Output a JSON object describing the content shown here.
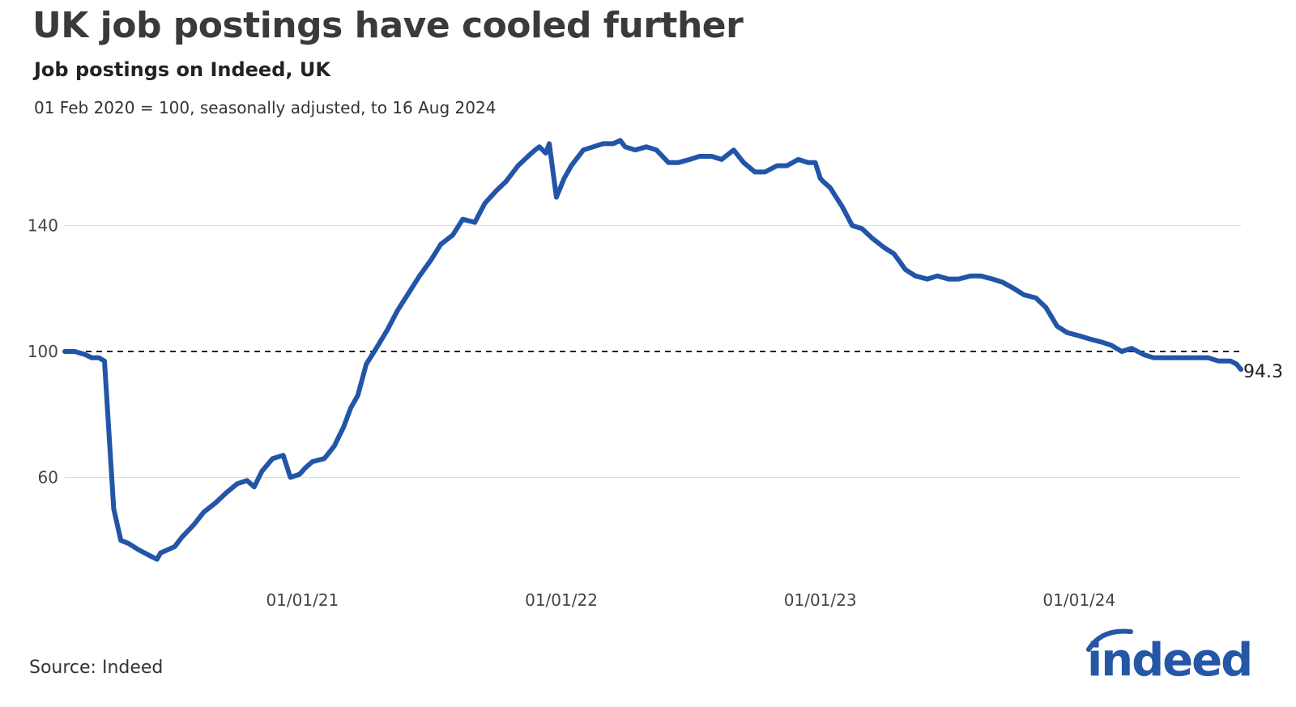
{
  "header": {
    "title": "UK job postings have cooled further",
    "subtitle": "Job postings on Indeed, UK",
    "note": "01 Feb 2020 = 100, seasonally adjusted, to 16 Aug 2024"
  },
  "footer": {
    "source": "Source: Indeed",
    "logo_text": "indeed"
  },
  "colors": {
    "line": "#2255a8",
    "logo": "#2557a7",
    "grid": "#dddddd",
    "reference": "#222222"
  },
  "chart_data": {
    "type": "line",
    "title": "UK job postings have cooled further",
    "subtitle": "Job postings on Indeed, UK",
    "x_axis": {
      "type": "date",
      "range": [
        "2020-02-01",
        "2024-08-16"
      ],
      "tick_labels": [
        "01/01/21",
        "01/01/22",
        "01/01/23",
        "01/01/24"
      ]
    },
    "y_axis": {
      "ticks": [
        60,
        100,
        140
      ],
      "range": [
        26,
        175
      ]
    },
    "grid": {
      "horizontal": true,
      "vertical": false
    },
    "reference_line": {
      "y": 100,
      "style": "dashed"
    },
    "end_label": "94.3",
    "series": [
      {
        "x": [
          "2020-02-01",
          "2020-02-15",
          "2020-03-01",
          "2020-03-10",
          "2020-03-20",
          "2020-03-28",
          "2020-04-03",
          "2020-04-10",
          "2020-04-20",
          "2020-05-01",
          "2020-05-15",
          "2020-06-01",
          "2020-06-10",
          "2020-06-15",
          "2020-06-25",
          "2020-07-05",
          "2020-07-15",
          "2020-08-01",
          "2020-08-15",
          "2020-09-01",
          "2020-09-15",
          "2020-10-01",
          "2020-10-15",
          "2020-10-25",
          "2020-11-05",
          "2020-11-20",
          "2020-12-05",
          "2020-12-15",
          "2020-12-28",
          "2021-01-05",
          "2021-01-15",
          "2021-02-01",
          "2021-02-15",
          "2021-02-28",
          "2021-03-10",
          "2021-03-20",
          "2021-04-01",
          "2021-04-15",
          "2021-05-01",
          "2021-05-15",
          "2021-06-01",
          "2021-06-15",
          "2021-07-01",
          "2021-07-15",
          "2021-08-01",
          "2021-08-15",
          "2021-09-01",
          "2021-09-15",
          "2021-10-01",
          "2021-10-15",
          "2021-11-01",
          "2021-11-15",
          "2021-11-25",
          "2021-12-01",
          "2021-12-10",
          "2021-12-15",
          "2021-12-25",
          "2022-01-05",
          "2022-01-15",
          "2022-02-01",
          "2022-02-15",
          "2022-03-01",
          "2022-03-15",
          "2022-03-25",
          "2022-04-01",
          "2022-04-15",
          "2022-05-01",
          "2022-05-15",
          "2022-06-01",
          "2022-06-15",
          "2022-07-01",
          "2022-07-15",
          "2022-08-01",
          "2022-08-15",
          "2022-09-01",
          "2022-09-15",
          "2022-10-01",
          "2022-10-15",
          "2022-11-01",
          "2022-11-15",
          "2022-12-01",
          "2022-12-15",
          "2022-12-25",
          "2023-01-01",
          "2023-01-05",
          "2023-01-15",
          "2023-02-01",
          "2023-02-15",
          "2023-03-01",
          "2023-03-15",
          "2023-04-01",
          "2023-04-15",
          "2023-05-01",
          "2023-05-15",
          "2023-06-01",
          "2023-06-15",
          "2023-07-01",
          "2023-07-15",
          "2023-08-01",
          "2023-08-15",
          "2023-09-01",
          "2023-09-15",
          "2023-10-01",
          "2023-10-15",
          "2023-11-01",
          "2023-11-15",
          "2023-12-01",
          "2023-12-15",
          "2024-01-01",
          "2024-01-15",
          "2024-02-01",
          "2024-02-15",
          "2024-03-01",
          "2024-03-15",
          "2024-04-01",
          "2024-04-15",
          "2024-05-01",
          "2024-05-15",
          "2024-06-01",
          "2024-06-15",
          "2024-07-01",
          "2024-07-15",
          "2024-08-01",
          "2024-08-10",
          "2024-08-16"
        ],
        "y": [
          100,
          100,
          99,
          98,
          98,
          97,
          75,
          50,
          40,
          39,
          37,
          35,
          34,
          36,
          37,
          38,
          41,
          45,
          49,
          52,
          55,
          58,
          59,
          57,
          62,
          66,
          67,
          60,
          61,
          63,
          65,
          66,
          70,
          76,
          82,
          86,
          96,
          101,
          107,
          113,
          119,
          124,
          129,
          134,
          137,
          142,
          141,
          147,
          151,
          154,
          159,
          162,
          164,
          165,
          163,
          166,
          149,
          155,
          159,
          164,
          165,
          166,
          166,
          167,
          165,
          164,
          165,
          164,
          160,
          160,
          161,
          162,
          162,
          161,
          164,
          160,
          157,
          157,
          159,
          159,
          161,
          160,
          160,
          155,
          154,
          152,
          146,
          140,
          139,
          136,
          133,
          131,
          126,
          124,
          123,
          124,
          123,
          123,
          124,
          124,
          123,
          122,
          120,
          118,
          117,
          114,
          108,
          106,
          105,
          104,
          103,
          102,
          100,
          101,
          99,
          98,
          98,
          98,
          98,
          98,
          98,
          97,
          97,
          96,
          94.3
        ]
      }
    ]
  }
}
